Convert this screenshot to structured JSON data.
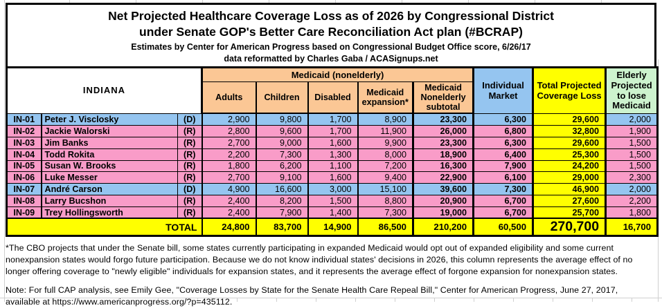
{
  "title": {
    "line1": "Net Projected Healthcare Coverage Loss as of 2026 by Congressional District",
    "line2": "under Senate GOP's Better Care Reconciliation Act plan (#BCRAP)",
    "line3": "Estimates by Center for American Progress based on Congressional Budget Office score, 6/26/17",
    "line4": "data reformatted by Charles Gaba / ACASignups.net"
  },
  "state_label": "INDIANA",
  "colors": {
    "medicaid_header": "#FBC795",
    "democrat_row": "#95C5F0",
    "republican_row": "#F99CC8",
    "total_column": "#FFFF00",
    "elderly_header": "#CDF3CE"
  },
  "chart_data": {
    "type": "table",
    "group_header": "Medicaid (nonelderly)",
    "columns": [
      "Adults",
      "Children",
      "Disabled",
      "Medicaid expansion*",
      "Medicaid Nonelderly subtotal",
      "Individual Market",
      "Total Projected Coverage Loss",
      "Elderly Projected to lose Medicaid"
    ],
    "rows": [
      {
        "district": "IN-01",
        "representative": "Peter J. Visclosky",
        "party": "(D)",
        "values": [
          2900,
          9800,
          1700,
          8900,
          23300,
          6300,
          29600,
          2000
        ]
      },
      {
        "district": "IN-02",
        "representative": "Jackie Walorski",
        "party": "(R)",
        "values": [
          2800,
          9600,
          1700,
          11900,
          26000,
          6800,
          32800,
          1900
        ]
      },
      {
        "district": "IN-03",
        "representative": "Jim Banks",
        "party": "(R)",
        "values": [
          2700,
          9000,
          1600,
          9900,
          23300,
          6300,
          29600,
          1500
        ]
      },
      {
        "district": "IN-04",
        "representative": "Todd Rokita",
        "party": "(R)",
        "values": [
          2200,
          7300,
          1300,
          8000,
          18900,
          6400,
          25300,
          1500
        ]
      },
      {
        "district": "IN-05",
        "representative": "Susan W. Brooks",
        "party": "(R)",
        "values": [
          1800,
          6200,
          1100,
          7200,
          16300,
          7900,
          24200,
          1500
        ]
      },
      {
        "district": "IN-06",
        "representative": "Luke Messer",
        "party": "(R)",
        "values": [
          2700,
          9100,
          1600,
          9400,
          22900,
          6100,
          29000,
          2300
        ]
      },
      {
        "district": "IN-07",
        "representative": "André Carson",
        "party": "(D)",
        "values": [
          4900,
          16600,
          3000,
          15100,
          39600,
          7300,
          46900,
          2000
        ]
      },
      {
        "district": "IN-08",
        "representative": "Larry Bucshon",
        "party": "(R)",
        "values": [
          2400,
          8200,
          1500,
          8800,
          20900,
          6700,
          27600,
          2200
        ]
      },
      {
        "district": "IN-09",
        "representative": "Trey Hollingsworth",
        "party": "(R)",
        "values": [
          2400,
          7900,
          1400,
          7300,
          19000,
          6700,
          25700,
          1800
        ]
      }
    ],
    "total_row": {
      "label": "TOTAL",
      "values": [
        24800,
        83700,
        14900,
        86500,
        210200,
        60500,
        270700,
        16700
      ]
    }
  },
  "footnotes": {
    "cbo_note": "*The CBO projects that under the Senate bill, some states currently participating in expanded Medicaid would opt out of expanded eligibility and some current nonexpansion states would forgo future participation. Because we do not know individual states' decisions in 2026, this column represents the average effect of no longer offering coverage to \"newly eligible\" individuals for expansion states, and it represents the average effect of forgone expansion for nonexpansion states.",
    "cap_note": "Note: For full CAP analysis, see Emily Gee, \"Coverage Losses by State for the Senate Health Care Repeal Bill,\" Center for American Progress, June 27, 2017, available at https://www.americanprogress.org/?p=435112."
  }
}
